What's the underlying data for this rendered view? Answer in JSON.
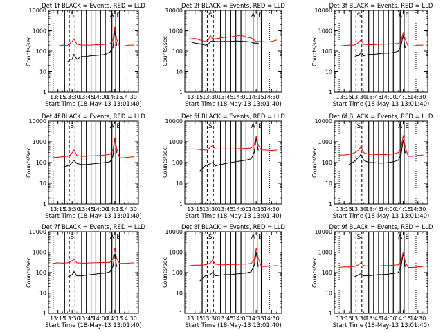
{
  "figure": {
    "ylabel": "Counts/sec",
    "xlabel": "Start Time (18-May-13 13:01:40)",
    "yticks": [
      "1",
      "10",
      "100",
      "1000",
      "10000"
    ],
    "xticks": [
      "13:15",
      "13:30",
      "13:45",
      "14:00",
      "14:15",
      "14:30"
    ],
    "markers": [
      "S",
      "A",
      "E"
    ],
    "colors": {
      "events": "#000000",
      "lld": "#ff0000",
      "axis": "#000000",
      "background": "#ffffff"
    }
  },
  "chart_data": [
    {
      "type": "line",
      "title": "Det 1f BLACK = Events, RED = LLD",
      "xlabel": "Start Time (18-May-13 13:01:40)",
      "ylabel": "Counts/sec",
      "ylog": true,
      "ylim": [
        1,
        10000
      ],
      "x": [
        "13:10",
        "13:15",
        "13:20",
        "13:25",
        "13:28",
        "13:30",
        "13:32",
        "13:35",
        "13:40",
        "13:45",
        "13:50",
        "13:55",
        "14:00",
        "14:05",
        "14:10",
        "14:13",
        "14:15",
        "14:17",
        "14:20",
        "14:25",
        "14:30",
        "14:35"
      ],
      "series": [
        {
          "name": "Events",
          "values": [
            null,
            null,
            null,
            30,
            40,
            40,
            70,
            40,
            55,
            55,
            60,
            62,
            65,
            70,
            90,
            150,
            1000,
            200,
            null,
            null,
            null,
            null
          ]
        },
        {
          "name": "LLD",
          "values": [
            null,
            180,
            200,
            190,
            250,
            300,
            400,
            220,
            200,
            200,
            200,
            210,
            210,
            220,
            230,
            350,
            1500,
            400,
            180,
            180,
            200,
            200
          ]
        }
      ]
    },
    {
      "type": "line",
      "title": "Det 2f BLACK = Events, RED = LLD",
      "xlabel": "Start Time (18-May-13 13:01:40)",
      "ylabel": "Counts/sec",
      "ylog": true,
      "ylim": [
        1,
        10000
      ],
      "x": [
        "13:10",
        "13:15",
        "13:20",
        "13:25",
        "13:28",
        "13:30",
        "13:32",
        "13:35",
        "13:40",
        "13:45",
        "13:50",
        "13:55",
        "14:00",
        "14:05",
        "14:10",
        "14:13",
        "14:15",
        "14:17",
        "14:20",
        "14:25",
        "14:30",
        "14:35"
      ],
      "series": [
        {
          "name": "Events",
          "values": [
            300,
            250,
            230,
            200,
            220,
            300,
            320,
            300,
            300,
            300,
            300,
            320,
            310,
            300,
            280,
            250,
            250,
            240,
            null,
            null,
            null,
            null
          ]
        },
        {
          "name": "LLD",
          "values": [
            400,
            420,
            350,
            300,
            350,
            600,
            420,
            400,
            450,
            480,
            500,
            550,
            600,
            500,
            450,
            350,
            300,
            300,
            300,
            280,
            300,
            350
          ]
        }
      ]
    },
    {
      "type": "line",
      "title": "Det 3f BLACK = Events, RED = LLD",
      "xlabel": "Start Time (18-May-13 13:01:40)",
      "ylabel": "Counts/sec",
      "ylog": true,
      "ylim": [
        1,
        10000
      ],
      "x": [
        "13:10",
        "13:15",
        "13:20",
        "13:25",
        "13:28",
        "13:30",
        "13:32",
        "13:35",
        "13:40",
        "13:45",
        "13:50",
        "13:55",
        "14:00",
        "14:05",
        "14:10",
        "14:13",
        "14:15",
        "14:17",
        "14:20",
        "14:25",
        "14:30",
        "14:35"
      ],
      "series": [
        {
          "name": "Events",
          "values": [
            null,
            null,
            null,
            50,
            60,
            60,
            90,
            60,
            70,
            70,
            75,
            80,
            80,
            85,
            100,
            200,
            600,
            150,
            null,
            null,
            null,
            null
          ]
        },
        {
          "name": "LLD",
          "values": [
            180,
            190,
            200,
            200,
            230,
            280,
            350,
            220,
            210,
            210,
            220,
            220,
            230,
            230,
            240,
            350,
            800,
            400,
            180,
            180,
            200,
            200
          ]
        }
      ]
    },
    {
      "type": "line",
      "title": "Det 4f BLACK = Events, RED = LLD",
      "xlabel": "Start Time (18-May-13 13:01:40)",
      "ylabel": "Counts/sec",
      "ylog": true,
      "ylim": [
        1,
        10000
      ],
      "x": [
        "13:10",
        "13:15",
        "13:20",
        "13:25",
        "13:28",
        "13:30",
        "13:32",
        "13:35",
        "13:40",
        "13:45",
        "13:50",
        "13:55",
        "14:00",
        "14:05",
        "14:10",
        "14:13",
        "14:15",
        "14:17",
        "14:20",
        "14:25",
        "14:30",
        "14:35"
      ],
      "series": [
        {
          "name": "Events",
          "values": [
            null,
            null,
            60,
            70,
            80,
            100,
            130,
            90,
            80,
            80,
            85,
            90,
            95,
            100,
            110,
            200,
            1500,
            300,
            null,
            null,
            null,
            null
          ]
        },
        {
          "name": "LLD",
          "values": [
            170,
            180,
            190,
            200,
            230,
            300,
            400,
            220,
            200,
            200,
            210,
            210,
            220,
            230,
            250,
            400,
            1500,
            500,
            170,
            170,
            180,
            190
          ]
        }
      ]
    },
    {
      "type": "line",
      "title": "Det 5f BLACK = Events, RED = LLD",
      "xlabel": "Start Time (18-May-13 13:01:40)",
      "ylabel": "Counts/sec",
      "ylog": true,
      "ylim": [
        1,
        10000
      ],
      "x": [
        "13:10",
        "13:15",
        "13:20",
        "13:25",
        "13:28",
        "13:30",
        "13:32",
        "13:35",
        "13:40",
        "13:45",
        "13:50",
        "13:55",
        "14:00",
        "14:05",
        "14:10",
        "14:13",
        "14:15",
        "14:17",
        "14:20",
        "14:25",
        "14:30",
        "14:35"
      ],
      "series": [
        {
          "name": "Events",
          "values": [
            null,
            null,
            40,
            70,
            80,
            90,
            100,
            70,
            80,
            90,
            100,
            110,
            120,
            130,
            150,
            300,
            1500,
            400,
            null,
            null,
            null,
            null
          ]
        },
        {
          "name": "LLD",
          "values": [
            450,
            450,
            420,
            400,
            450,
            550,
            650,
            450,
            450,
            450,
            450,
            460,
            470,
            480,
            500,
            700,
            1800,
            700,
            400,
            400,
            380,
            400
          ]
        }
      ]
    },
    {
      "type": "line",
      "title": "Det 6f BLACK = Events, RED = LLD",
      "xlabel": "Start Time (18-May-13 13:01:40)",
      "ylabel": "Counts/sec",
      "ylog": true,
      "ylim": [
        1,
        10000
      ],
      "x": [
        "13:10",
        "13:15",
        "13:20",
        "13:25",
        "13:28",
        "13:30",
        "13:32",
        "13:35",
        "13:40",
        "13:45",
        "13:50",
        "13:55",
        "14:00",
        "14:05",
        "14:10",
        "14:13",
        "14:15",
        "14:17",
        "14:20",
        "14:25",
        "14:30",
        "14:35"
      ],
      "series": [
        {
          "name": "Events",
          "values": [
            null,
            null,
            80,
            110,
            150,
            180,
            250,
            130,
            100,
            100,
            95,
            95,
            100,
            110,
            130,
            250,
            1200,
            300,
            null,
            null,
            null,
            null
          ]
        },
        {
          "name": "LLD",
          "values": [
            230,
            230,
            250,
            280,
            350,
            400,
            600,
            300,
            250,
            250,
            240,
            240,
            250,
            260,
            300,
            500,
            2000,
            600,
            200,
            200,
            220,
            230
          ]
        }
      ]
    },
    {
      "type": "line",
      "title": "Det 7f BLACK = Events, RED = LLD",
      "xlabel": "Start Time (18-May-13 13:01:40)",
      "ylabel": "Counts/sec",
      "ylog": true,
      "ylim": [
        1,
        10000
      ],
      "x": [
        "13:10",
        "13:15",
        "13:20",
        "13:25",
        "13:28",
        "13:30",
        "13:32",
        "13:35",
        "13:40",
        "13:45",
        "13:50",
        "13:55",
        "14:00",
        "14:05",
        "14:10",
        "14:13",
        "14:15",
        "14:17",
        "14:20",
        "14:25",
        "14:30",
        "14:35"
      ],
      "series": [
        {
          "name": "Events",
          "values": [
            null,
            null,
            null,
            60,
            70,
            80,
            110,
            70,
            70,
            75,
            80,
            85,
            90,
            95,
            110,
            200,
            800,
            200,
            null,
            null,
            null,
            null
          ]
        },
        {
          "name": "LLD",
          "values": [
            280,
            300,
            290,
            300,
            330,
            380,
            450,
            300,
            290,
            290,
            300,
            300,
            310,
            310,
            320,
            450,
            1500,
            500,
            280,
            280,
            290,
            300
          ]
        }
      ]
    },
    {
      "type": "line",
      "title": "Det 8f BLACK = Events, RED = LLD",
      "xlabel": "Start Time (18-May-13 13:01:40)",
      "ylabel": "Counts/sec",
      "ylog": true,
      "ylim": [
        1,
        10000
      ],
      "x": [
        "13:10",
        "13:15",
        "13:20",
        "13:25",
        "13:28",
        "13:30",
        "13:32",
        "13:35",
        "13:40",
        "13:45",
        "13:50",
        "13:55",
        "14:00",
        "14:05",
        "14:10",
        "14:13",
        "14:15",
        "14:17",
        "14:20",
        "14:25",
        "14:30",
        "14:35"
      ],
      "series": [
        {
          "name": "Events",
          "values": [
            null,
            null,
            40,
            70,
            75,
            80,
            100,
            70,
            75,
            80,
            80,
            85,
            90,
            95,
            110,
            220,
            1000,
            200,
            null,
            null,
            null,
            null
          ]
        },
        {
          "name": "LLD",
          "values": [
            220,
            230,
            230,
            240,
            260,
            300,
            400,
            260,
            240,
            240,
            250,
            250,
            260,
            260,
            280,
            400,
            1600,
            500,
            200,
            200,
            210,
            220
          ]
        }
      ]
    },
    {
      "type": "line",
      "title": "Det 9f BLACK = Events, RED = LLD",
      "xlabel": "Start Time (18-May-13 13:01:40)",
      "ylabel": "Counts/sec",
      "ylog": true,
      "ylim": [
        1,
        10000
      ],
      "x": [
        "13:10",
        "13:15",
        "13:20",
        "13:25",
        "13:28",
        "13:30",
        "13:32",
        "13:35",
        "13:40",
        "13:45",
        "13:50",
        "13:55",
        "14:00",
        "14:05",
        "14:10",
        "14:13",
        "14:15",
        "14:17",
        "14:20",
        "14:25",
        "14:30",
        "14:35"
      ],
      "series": [
        {
          "name": "Events",
          "values": [
            null,
            null,
            null,
            60,
            70,
            80,
            90,
            70,
            70,
            75,
            80,
            80,
            85,
            90,
            100,
            200,
            900,
            200,
            null,
            null,
            null,
            null
          ]
        },
        {
          "name": "LLD",
          "values": [
            180,
            190,
            190,
            200,
            220,
            250,
            300,
            220,
            210,
            210,
            210,
            220,
            220,
            230,
            240,
            350,
            1000,
            350,
            180,
            180,
            190,
            200
          ]
        }
      ]
    }
  ]
}
